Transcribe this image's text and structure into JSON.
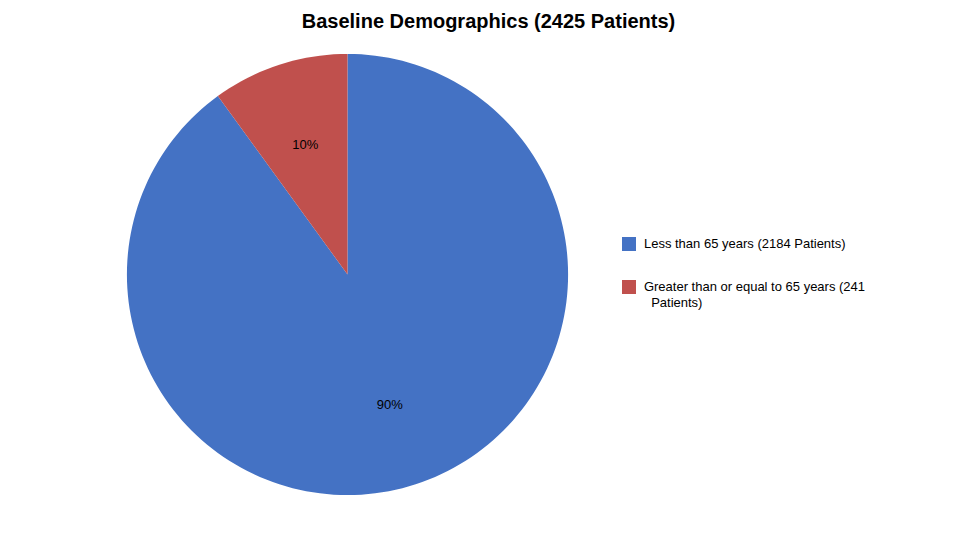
{
  "chart_data": {
    "type": "pie",
    "title": "Baseline Demographics (2425 Patients)",
    "categories": [
      "Less than 65 years (2184 Patients)",
      "Greater than or equal to 65 years (241\n  Patients)"
    ],
    "values": [
      90,
      10
    ],
    "value_labels": [
      "90%",
      "10%"
    ],
    "colors": [
      "#4472C4",
      "#C0504D"
    ],
    "data_labels": true,
    "legend": "right"
  }
}
